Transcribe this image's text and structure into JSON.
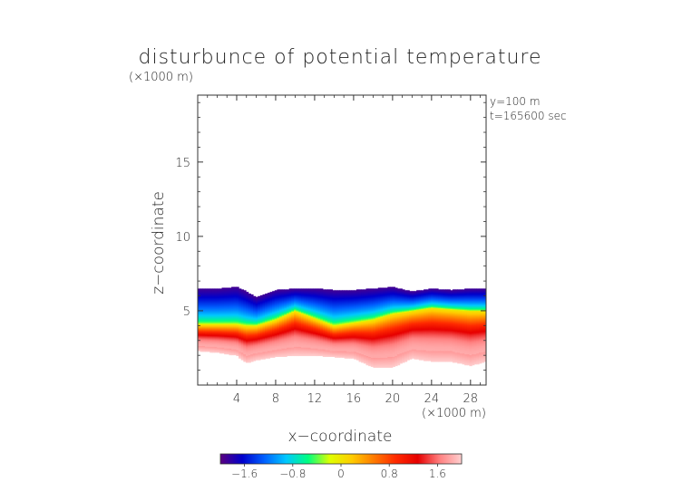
{
  "chart_data": {
    "type": "heatmap",
    "title": "disturbunce of potential temperature",
    "xlabel": "x−coordinate",
    "ylabel": "z−coordinate",
    "x_unit_label": "(×1000 m)",
    "z_unit_label": "(×1000 m)",
    "annotations": [
      "y=100 m",
      "t=165600 sec"
    ],
    "xlim": [
      0,
      29.6
    ],
    "ylim": [
      0,
      19.5
    ],
    "x_ticks": [
      4,
      8,
      12,
      16,
      20,
      24,
      28
    ],
    "x_tick_labels": [
      "4",
      "8",
      "12",
      "16",
      "20",
      "24",
      "28"
    ],
    "y_ticks": [
      5,
      10,
      15
    ],
    "y_tick_labels": [
      "5",
      "10",
      "15"
    ],
    "colorbar": {
      "range": [
        -2.0,
        2.0
      ],
      "ticks": [
        -1.6,
        -0.8,
        0,
        0.8,
        1.6
      ],
      "tick_labels": [
        "−1.6",
        "−0.8",
        "0",
        "0.8",
        "1.6"
      ],
      "colors": [
        "#5a007f",
        "#0000cc",
        "#0060ff",
        "#00c8ff",
        "#00ff80",
        "#e0ff00",
        "#ffcc00",
        "#ff7a00",
        "#ff2a00",
        "#e60000",
        "#ff8080",
        "#ffd0d0"
      ]
    },
    "layer": {
      "x": [
        0,
        2,
        4,
        5,
        6,
        8,
        10,
        12,
        14,
        16,
        18,
        20,
        22,
        24,
        26,
        28,
        29.6
      ],
      "z_top": [
        6.5,
        6.5,
        6.6,
        6.3,
        5.9,
        6.4,
        6.5,
        6.5,
        6.4,
        6.4,
        6.5,
        6.6,
        6.3,
        6.5,
        6.4,
        6.5,
        6.5
      ],
      "z_bottom": [
        2.3,
        2.2,
        2.0,
        1.5,
        1.7,
        1.9,
        2.0,
        2.0,
        1.9,
        1.8,
        1.2,
        1.2,
        1.8,
        1.6,
        1.6,
        1.3,
        1.6
      ],
      "z_zero": [
        4.1,
        4.1,
        4.1,
        4.0,
        4.0,
        4.4,
        5.0,
        4.5,
        4.0,
        4.2,
        4.4,
        4.8,
        5.0,
        5.2,
        5.1,
        5.0,
        5.0
      ]
    }
  }
}
